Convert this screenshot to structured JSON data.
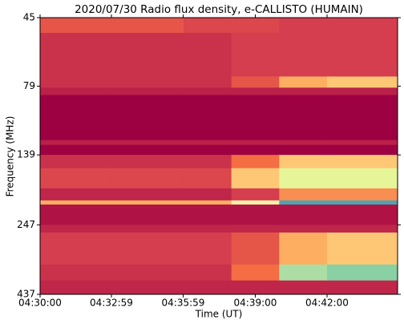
{
  "chart_data": {
    "type": "heatmap",
    "title": "2020/07/30  Radio flux density, e-CALLISTO (HUMAIN)",
    "xlabel": "Time (UT)",
    "ylabel": "Frequency (MHz)",
    "x_edges": [
      "04:30:00",
      "04:33:00",
      "04:36:00",
      "04:38:00",
      "04:40:00",
      "04:42:00",
      "04:44:57"
    ],
    "y_edges": [
      45,
      51,
      73,
      80,
      85,
      123,
      128,
      139,
      155,
      183,
      202,
      209,
      247,
      263,
      342,
      390,
      437
    ],
    "z": [
      [
        0.15,
        0.15,
        0.12,
        0.12,
        0.1,
        0.1
      ],
      [
        0.08,
        0.08,
        0.08,
        0.1,
        0.1,
        0.1
      ],
      [
        0.08,
        0.08,
        0.08,
        0.15,
        0.3,
        0.35
      ],
      [
        0.05,
        0.05,
        0.05,
        0.05,
        0.05,
        0.05
      ],
      [
        0,
        0,
        0,
        0,
        0,
        0
      ],
      [
        0.05,
        0.05,
        0.05,
        0.05,
        0.05,
        0.05
      ],
      [
        0,
        0,
        0,
        0,
        0,
        0
      ],
      [
        0.08,
        0.08,
        0.08,
        0.2,
        0.35,
        0.35
      ],
      [
        0.12,
        0.12,
        0.12,
        0.35,
        0.6,
        0.6
      ],
      [
        0.06,
        0.06,
        0.06,
        0.1,
        0.25,
        0.25
      ],
      [
        0.3,
        0.3,
        0.3,
        0.45,
        0.85,
        0.85
      ],
      [
        0.03,
        0.03,
        0.03,
        0.03,
        0.03,
        0.03
      ],
      [
        0.06,
        0.06,
        0.06,
        0.06,
        0.06,
        0.06
      ],
      [
        0.1,
        0.1,
        0.1,
        0.15,
        0.3,
        0.35
      ],
      [
        0.08,
        0.08,
        0.08,
        0.2,
        0.7,
        0.75
      ],
      [
        0.06,
        0.06,
        0.06,
        0.06,
        0.06,
        0.06
      ]
    ],
    "zlim": [
      0,
      1
    ],
    "colormap": [
      "#9e0142",
      "#d53e4f",
      "#f46d43",
      "#fdae61",
      "#fee08b",
      "#ffffbf",
      "#e6f598",
      "#abdda4",
      "#66c2a5",
      "#3288bd",
      "#5e4fa2"
    ],
    "xlim": [
      "04:30:00",
      "04:44:57"
    ],
    "xticks": [
      "04:30:00",
      "04:32:59",
      "04:35:59",
      "04:39:00",
      "04:42:00"
    ],
    "ylim": [
      45,
      437
    ],
    "yscale": "log",
    "yinverted": true,
    "yticks": [
      45,
      79,
      139,
      247,
      437
    ]
  }
}
